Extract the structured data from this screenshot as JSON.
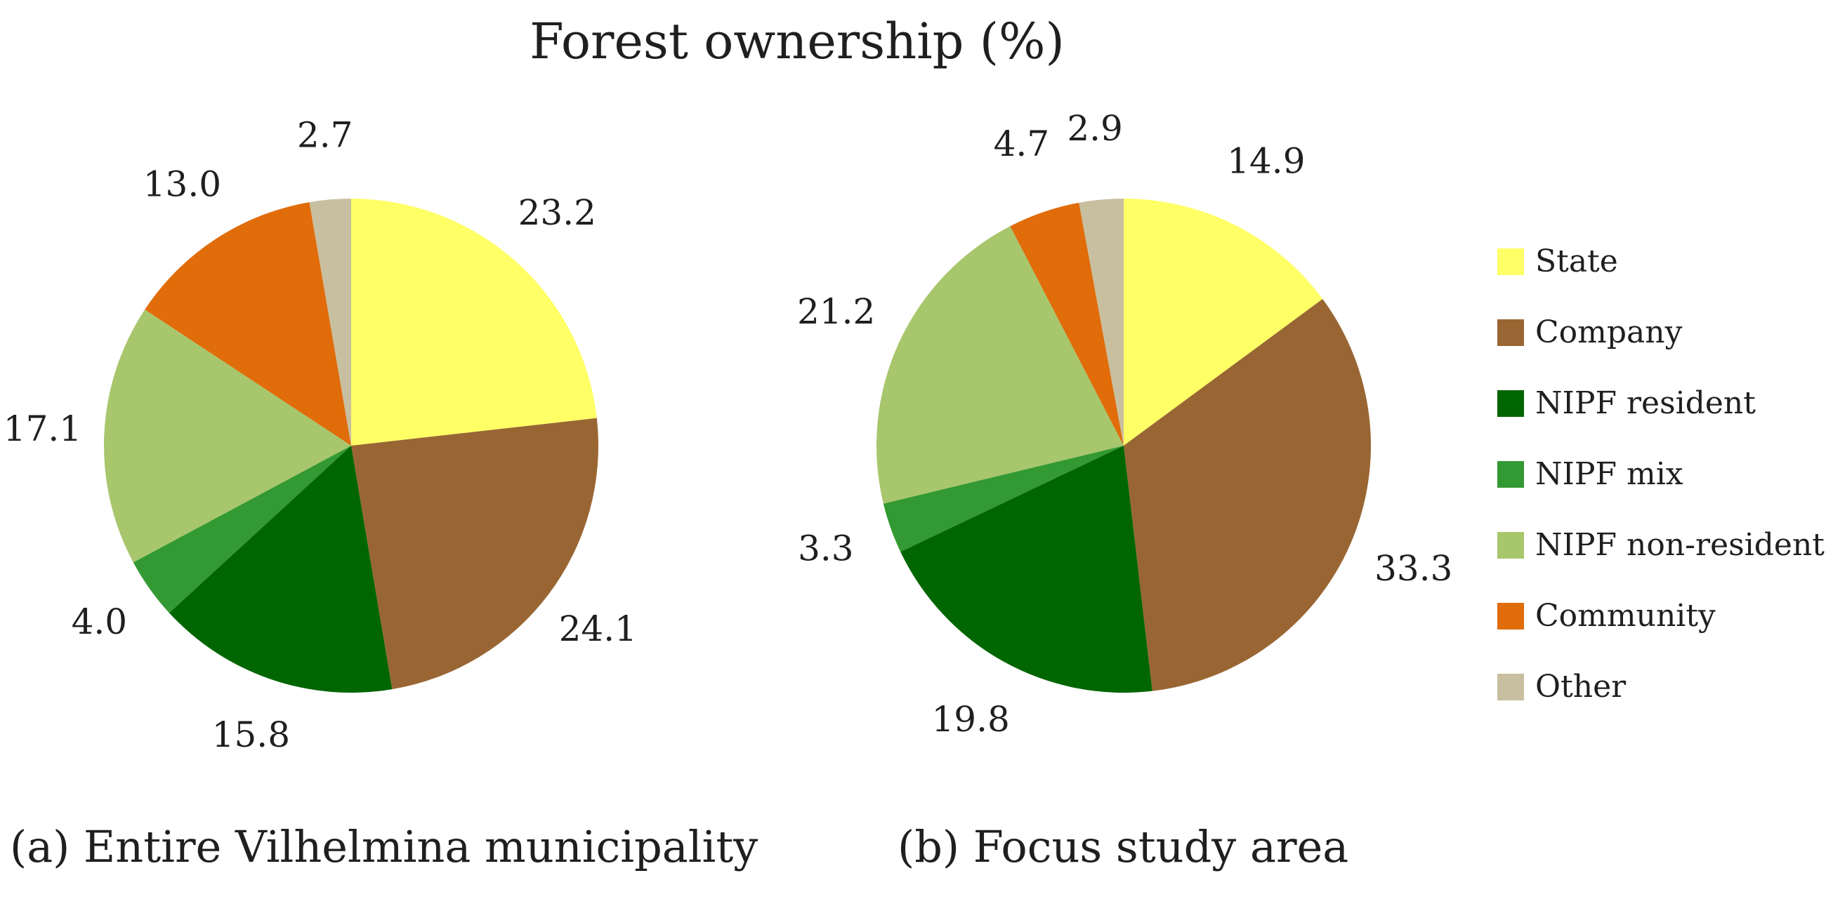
{
  "title": "Forest ownership (%)",
  "chart_data": [
    {
      "type": "pie",
      "caption": "(a) Entire Vilhelmina municipality",
      "categories": [
        "State",
        "Company",
        "NIPF resident",
        "NIPF mix",
        "NIPF non-resident",
        "Community",
        "Other"
      ],
      "values": [
        23.2,
        24.1,
        15.8,
        4.0,
        17.1,
        13.0,
        2.7
      ],
      "labels": [
        "23.2",
        "24.1",
        "15.8",
        "4.0",
        "17.1",
        "13.0",
        "2.7"
      ]
    },
    {
      "type": "pie",
      "caption": "(b) Focus study area",
      "categories": [
        "State",
        "Company",
        "NIPF resident",
        "NIPF mix",
        "NIPF non-resident",
        "Community",
        "Other"
      ],
      "values": [
        14.9,
        33.3,
        19.8,
        3.3,
        21.2,
        4.7,
        2.9
      ],
      "labels": [
        "14.9",
        "33.3",
        "19.8",
        "3.3",
        "21.2",
        "4.7",
        "2.9"
      ]
    }
  ],
  "legend": {
    "placement": "right",
    "items": [
      {
        "label": "State",
        "color": "#ffff66"
      },
      {
        "label": "Company",
        "color": "#996633"
      },
      {
        "label": "NIPF resident",
        "color": "#006600"
      },
      {
        "label": "NIPF mix",
        "color": "#339933"
      },
      {
        "label": "NIPF non-resident",
        "color": "#a8c66c"
      },
      {
        "label": "Community",
        "color": "#e06c0a"
      },
      {
        "label": "Other",
        "color": "#c8bfa0"
      }
    ]
  }
}
